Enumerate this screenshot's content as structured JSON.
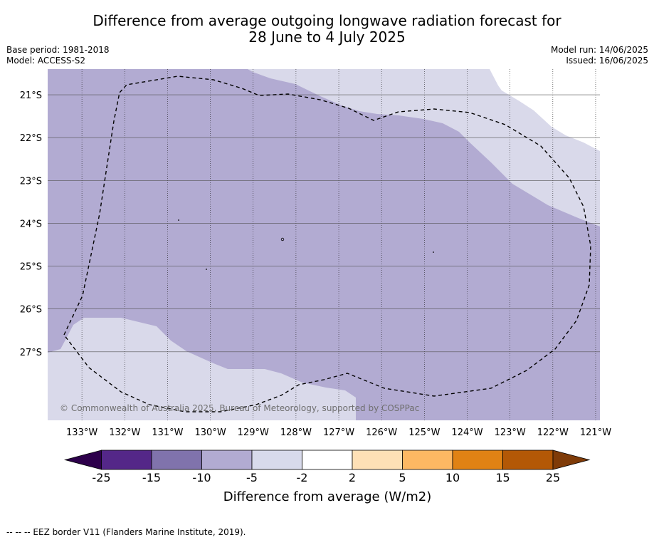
{
  "title_line1": "Difference from average outgoing longwave radiation forecast for",
  "title_line2": "28 June to 4 July 2025",
  "base_period": "Base period: 1981-2018",
  "model": "Model: ACCESS-S2",
  "model_run": "Model run: 14/06/2025",
  "issued": "Issued: 16/06/2025",
  "copyright": "© Commonwealth of Australia 2025, Bureau of Meteorology, supported by COSPPac",
  "footer": "--  --  -- EEZ border V11 (Flanders Marine Institute, 2019).",
  "map": {
    "lon_labels": [
      "133°W",
      "132°W",
      "131°W",
      "130°W",
      "129°W",
      "128°W",
      "127°W",
      "126°W",
      "125°W",
      "124°W",
      "123°W",
      "122°W",
      "121°W"
    ],
    "lat_labels": [
      "21°S",
      "22°S",
      "23°S",
      "24°S",
      "25°S",
      "26°S",
      "27°S"
    ],
    "lon_range": [
      -133.8,
      -120.9
    ],
    "lat_range": [
      -28.6,
      -20.4
    ],
    "field_colors": {
      "minus5_to_minus2": "#d9d9ea",
      "minus10_to_minus5": "#b2abd2"
    }
  },
  "colorbar": {
    "title": "Difference from average (W/m2)",
    "ticks": [
      "-25",
      "-15",
      "-10",
      "-5",
      "-2",
      "2",
      "5",
      "10",
      "15",
      "25"
    ],
    "colors": [
      "#2d004b",
      "#542788",
      "#8073ac",
      "#b2abd2",
      "#d8daeb",
      "#ffffff",
      "#fee0b6",
      "#fdb863",
      "#e08214",
      "#b35806",
      "#7f3b08"
    ]
  }
}
